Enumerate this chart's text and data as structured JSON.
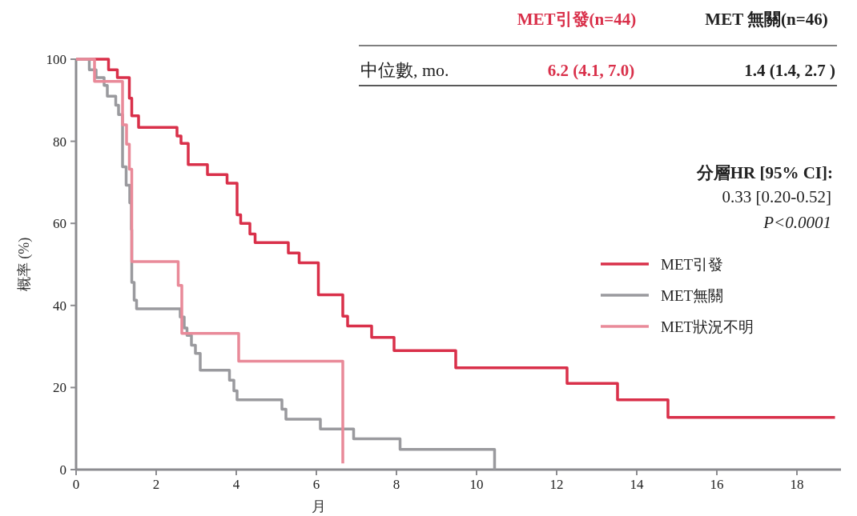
{
  "chart_data": {
    "type": "step",
    "xlabel": "月",
    "ylabel": "概率 (%)",
    "xlim": [
      0,
      19.1
    ],
    "ylim": [
      0,
      100
    ],
    "xticks": [
      0,
      2,
      4,
      6,
      8,
      10,
      12,
      14,
      16,
      18
    ],
    "yticks": [
      0,
      20,
      40,
      60,
      80,
      100
    ],
    "legend": "right",
    "series": [
      {
        "name": "MET引發",
        "color": "#d9304a",
        "x": [
          0,
          0.81,
          1.03,
          1.33,
          1.39,
          1.56,
          2.52,
          2.62,
          2.8,
          3.28,
          3.77,
          4.02,
          4.11,
          4.34,
          4.47,
          5.3,
          5.57,
          6.05,
          6.66,
          6.78,
          7.38,
          7.94,
          9.48,
          12.26,
          13.52,
          14.78,
          18.95
        ],
        "values": [
          100,
          97.4,
          95.5,
          90.5,
          86.2,
          83.4,
          81.3,
          79.5,
          74.3,
          71.9,
          69.8,
          62.1,
          60.0,
          57.4,
          55.3,
          52.8,
          50.4,
          42.6,
          37.4,
          35.0,
          32.2,
          29.0,
          24.8,
          21.0,
          17.0,
          12.7,
          12.7
        ]
      },
      {
        "name": "MET無關",
        "color": "#9a9a9e",
        "x": [
          0,
          0.33,
          0.5,
          0.7,
          0.78,
          0.99,
          1.06,
          1.16,
          1.25,
          1.34,
          1.38,
          1.39,
          1.45,
          1.51,
          2.6,
          2.7,
          2.77,
          2.88,
          2.98,
          3.1,
          3.83,
          3.94,
          4.02,
          5.14,
          5.24,
          6.1,
          6.93,
          8.09,
          10.45
        ],
        "values": [
          100,
          97.4,
          95.5,
          93.6,
          91.0,
          88.8,
          86.5,
          73.8,
          69.3,
          65.0,
          58.5,
          45.6,
          41.3,
          39.2,
          37.2,
          34.5,
          32.7,
          30.3,
          28.3,
          24.2,
          21.8,
          19.2,
          17.0,
          14.7,
          12.3,
          9.9,
          7.5,
          4.9,
          0
        ]
      },
      {
        "name": "MET狀況不明",
        "color": "#e98a99",
        "x": [
          0,
          0.46,
          1.16,
          1.26,
          1.33,
          1.39,
          2.55,
          2.64,
          4.06,
          6.66
        ],
        "values": [
          100,
          94.6,
          84.0,
          79.3,
          73.2,
          50.7,
          44.9,
          33.2,
          26.4,
          1.5
        ]
      }
    ],
    "annotations": [
      "MET引發(n=44)",
      "MET 無關(n=46)",
      "中位數, mo.",
      "6.2 (4.1, 7.0)",
      "1.4 (1.4, 2.7 )",
      "分層HR [95% CI]:",
      "0.33 [0.20-0.52]",
      "P<0.0001"
    ]
  }
}
